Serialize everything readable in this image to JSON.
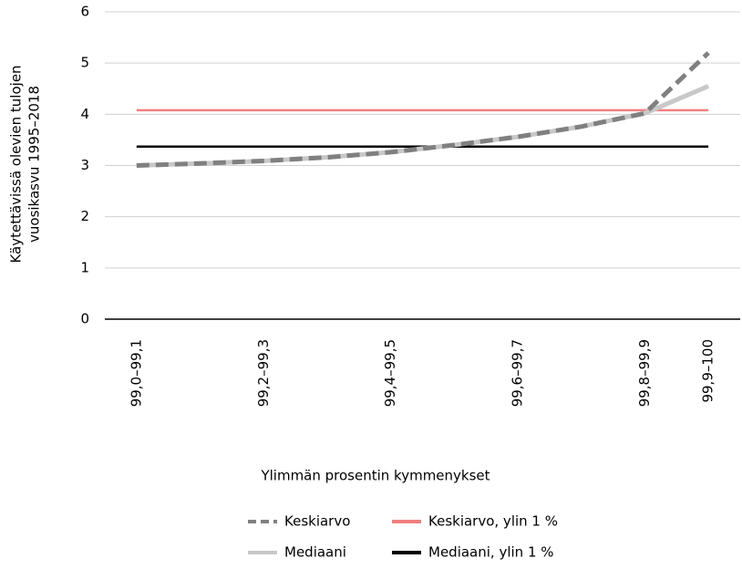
{
  "chart_data": {
    "type": "line",
    "y_label": [
      "Käytettävissä olevien tulojen",
      "vuosikasvu 1995–2018"
    ],
    "x_label": "Ylimmän prosentin kymmenykset",
    "categories": [
      "99,0–99,1",
      null,
      "99,2–99,3",
      null,
      "99,4–99,5",
      null,
      "99,6–99,7",
      null,
      "99,8–99,9",
      "99,9–100"
    ],
    "series": [
      {
        "name": "Keskiarvo",
        "color": "#808080",
        "dash": true,
        "values": [
          3.0,
          3.04,
          3.09,
          3.16,
          3.26,
          3.4,
          3.56,
          3.76,
          4.02,
          5.2
        ]
      },
      {
        "name": "Keskiarvo, ylin 1 %",
        "color": "#f08080",
        "dash": false,
        "values": [
          4.08,
          4.08,
          4.08,
          4.08,
          4.08,
          4.08,
          4.08,
          4.08,
          4.08,
          4.08
        ]
      },
      {
        "name": "Mediaani",
        "color": "#c8c8c8",
        "dash": false,
        "values": [
          3.0,
          3.04,
          3.09,
          3.16,
          3.26,
          3.4,
          3.56,
          3.76,
          4.02,
          4.55
        ]
      },
      {
        "name": "Mediaani, ylin 1 %",
        "color": "#000000",
        "dash": false,
        "values": [
          3.37,
          3.37,
          3.37,
          3.37,
          3.37,
          3.37,
          3.37,
          3.37,
          3.37,
          3.37
        ]
      }
    ],
    "ylim": [
      0,
      6
    ],
    "yticks": [
      0,
      1,
      2,
      3,
      4,
      5,
      6
    ],
    "grid": true
  }
}
